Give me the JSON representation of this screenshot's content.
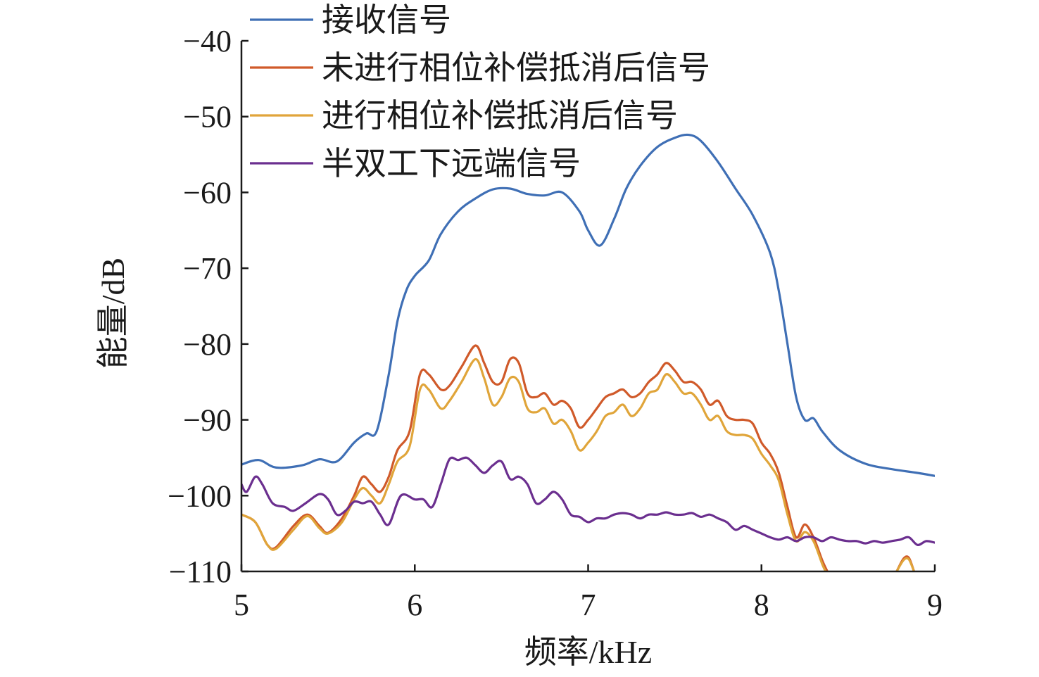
{
  "chart_data": {
    "type": "line",
    "xlabel": "频率/kHz",
    "ylabel": "能量/dB",
    "xlim": [
      5,
      9
    ],
    "ylim": [
      -110,
      -40
    ],
    "xticks": [
      5,
      6,
      7,
      8,
      9
    ],
    "yticks": [
      -40,
      -50,
      -60,
      -70,
      -80,
      -90,
      -100,
      -110
    ],
    "xtick_labels": [
      "5",
      "6",
      "7",
      "8",
      "9"
    ],
    "ytick_labels": [
      "−40",
      "−50",
      "−60",
      "−70",
      "−80",
      "−90",
      "−100",
      "−110"
    ],
    "grid": false,
    "legend_position": "top-left",
    "series": [
      {
        "name": "接收信号",
        "color": "#3f6fb5",
        "points": [
          [
            5.0,
            -95.9
          ],
          [
            5.1,
            -95.3
          ],
          [
            5.2,
            -96.3
          ],
          [
            5.35,
            -96.0
          ],
          [
            5.45,
            -95.2
          ],
          [
            5.55,
            -95.5
          ],
          [
            5.65,
            -93.0
          ],
          [
            5.72,
            -91.8
          ],
          [
            5.78,
            -91.5
          ],
          [
            5.85,
            -84.0
          ],
          [
            5.9,
            -77.0
          ],
          [
            5.95,
            -73.0
          ],
          [
            6.0,
            -71.0
          ],
          [
            6.08,
            -69.0
          ],
          [
            6.15,
            -65.5
          ],
          [
            6.25,
            -62.5
          ],
          [
            6.35,
            -60.8
          ],
          [
            6.45,
            -59.6
          ],
          [
            6.55,
            -59.5
          ],
          [
            6.65,
            -60.2
          ],
          [
            6.75,
            -60.4
          ],
          [
            6.85,
            -60.0
          ],
          [
            6.95,
            -62.5
          ],
          [
            7.0,
            -65.0
          ],
          [
            7.07,
            -67.0
          ],
          [
            7.15,
            -63.5
          ],
          [
            7.22,
            -59.5
          ],
          [
            7.3,
            -56.5
          ],
          [
            7.4,
            -54.0
          ],
          [
            7.5,
            -52.8
          ],
          [
            7.58,
            -52.4
          ],
          [
            7.65,
            -53.2
          ],
          [
            7.75,
            -56.0
          ],
          [
            7.85,
            -59.5
          ],
          [
            7.95,
            -63.0
          ],
          [
            8.05,
            -68.0
          ],
          [
            8.1,
            -73.0
          ],
          [
            8.15,
            -80.0
          ],
          [
            8.2,
            -87.0
          ],
          [
            8.25,
            -90.0
          ],
          [
            8.3,
            -89.8
          ],
          [
            8.35,
            -91.5
          ],
          [
            8.45,
            -94.0
          ],
          [
            8.6,
            -95.8
          ],
          [
            8.75,
            -96.5
          ],
          [
            8.9,
            -97.0
          ],
          [
            9.0,
            -97.4
          ]
        ]
      },
      {
        "name": "未进行相位补偿抵消后信号",
        "color": "#d05a2a",
        "points": [
          [
            5.0,
            -102.5
          ],
          [
            5.08,
            -103.5
          ],
          [
            5.15,
            -106.5
          ],
          [
            5.2,
            -106.8
          ],
          [
            5.3,
            -104.0
          ],
          [
            5.38,
            -102.5
          ],
          [
            5.45,
            -104.0
          ],
          [
            5.5,
            -104.9
          ],
          [
            5.58,
            -103.0
          ],
          [
            5.65,
            -100.0
          ],
          [
            5.7,
            -97.5
          ],
          [
            5.75,
            -98.5
          ],
          [
            5.8,
            -99.5
          ],
          [
            5.85,
            -97.5
          ],
          [
            5.9,
            -94.0
          ],
          [
            5.97,
            -91.5
          ],
          [
            6.03,
            -84.0
          ],
          [
            6.08,
            -84.0
          ],
          [
            6.15,
            -86.0
          ],
          [
            6.2,
            -85.5
          ],
          [
            6.27,
            -83.0
          ],
          [
            6.35,
            -80.2
          ],
          [
            6.4,
            -82.5
          ],
          [
            6.45,
            -85.0
          ],
          [
            6.5,
            -85.0
          ],
          [
            6.55,
            -82.0
          ],
          [
            6.6,
            -82.5
          ],
          [
            6.65,
            -86.5
          ],
          [
            6.7,
            -87.0
          ],
          [
            6.75,
            -86.5
          ],
          [
            6.8,
            -88.0
          ],
          [
            6.85,
            -87.5
          ],
          [
            6.9,
            -88.5
          ],
          [
            6.95,
            -91.0
          ],
          [
            7.0,
            -90.0
          ],
          [
            7.05,
            -88.5
          ],
          [
            7.1,
            -87.0
          ],
          [
            7.15,
            -86.5
          ],
          [
            7.2,
            -86.0
          ],
          [
            7.25,
            -87.0
          ],
          [
            7.3,
            -86.5
          ],
          [
            7.35,
            -85.0
          ],
          [
            7.4,
            -84.0
          ],
          [
            7.45,
            -82.5
          ],
          [
            7.5,
            -83.5
          ],
          [
            7.55,
            -85.0
          ],
          [
            7.6,
            -85.0
          ],
          [
            7.65,
            -86.0
          ],
          [
            7.7,
            -88.0
          ],
          [
            7.75,
            -87.5
          ],
          [
            7.8,
            -89.5
          ],
          [
            7.85,
            -90.0
          ],
          [
            7.9,
            -90.0
          ],
          [
            7.95,
            -90.5
          ],
          [
            8.0,
            -93.0
          ],
          [
            8.05,
            -94.5
          ],
          [
            8.1,
            -97.0
          ],
          [
            8.15,
            -101.5
          ],
          [
            8.2,
            -105.5
          ],
          [
            8.25,
            -103.8
          ],
          [
            8.3,
            -105.5
          ],
          [
            8.35,
            -108.5
          ],
          [
            8.38,
            -110.0
          ]
        ],
        "points_segment_2": [
          [
            8.78,
            -110.0
          ],
          [
            8.82,
            -108.3
          ],
          [
            8.85,
            -108.2
          ],
          [
            8.88,
            -110.0
          ]
        ]
      },
      {
        "name": "进行相位补偿抵消后信号",
        "color": "#e0a53a",
        "points": [
          [
            5.0,
            -102.5
          ],
          [
            5.08,
            -103.5
          ],
          [
            5.15,
            -106.5
          ],
          [
            5.2,
            -107.0
          ],
          [
            5.3,
            -104.5
          ],
          [
            5.38,
            -102.7
          ],
          [
            5.45,
            -104.3
          ],
          [
            5.5,
            -105.0
          ],
          [
            5.58,
            -103.5
          ],
          [
            5.65,
            -100.5
          ],
          [
            5.7,
            -99.0
          ],
          [
            5.75,
            -100.0
          ],
          [
            5.8,
            -101.0
          ],
          [
            5.85,
            -98.5
          ],
          [
            5.9,
            -95.5
          ],
          [
            5.97,
            -93.5
          ],
          [
            6.03,
            -86.0
          ],
          [
            6.08,
            -86.0
          ],
          [
            6.15,
            -88.5
          ],
          [
            6.2,
            -87.5
          ],
          [
            6.27,
            -85.0
          ],
          [
            6.35,
            -82.0
          ],
          [
            6.4,
            -84.5
          ],
          [
            6.45,
            -88.0
          ],
          [
            6.5,
            -87.0
          ],
          [
            6.55,
            -84.5
          ],
          [
            6.6,
            -85.0
          ],
          [
            6.65,
            -88.5
          ],
          [
            6.7,
            -89.0
          ],
          [
            6.75,
            -88.5
          ],
          [
            6.8,
            -90.5
          ],
          [
            6.85,
            -90.0
          ],
          [
            6.9,
            -91.5
          ],
          [
            6.95,
            -94.0
          ],
          [
            7.0,
            -93.0
          ],
          [
            7.05,
            -91.5
          ],
          [
            7.1,
            -89.5
          ],
          [
            7.15,
            -89.0
          ],
          [
            7.2,
            -88.0
          ],
          [
            7.25,
            -89.5
          ],
          [
            7.3,
            -88.5
          ],
          [
            7.35,
            -86.5
          ],
          [
            7.4,
            -86.0
          ],
          [
            7.45,
            -84.0
          ],
          [
            7.5,
            -85.0
          ],
          [
            7.55,
            -86.5
          ],
          [
            7.6,
            -86.5
          ],
          [
            7.65,
            -88.0
          ],
          [
            7.7,
            -90.0
          ],
          [
            7.75,
            -89.5
          ],
          [
            7.8,
            -91.5
          ],
          [
            7.85,
            -92.0
          ],
          [
            7.9,
            -92.0
          ],
          [
            7.95,
            -92.5
          ],
          [
            8.0,
            -94.5
          ],
          [
            8.05,
            -96.0
          ],
          [
            8.1,
            -98.0
          ],
          [
            8.15,
            -102.5
          ],
          [
            8.2,
            -106.0
          ],
          [
            8.25,
            -104.8
          ],
          [
            8.3,
            -106.0
          ],
          [
            8.35,
            -109.0
          ],
          [
            8.37,
            -110.0
          ]
        ],
        "points_segment_2": [
          [
            8.78,
            -110.0
          ],
          [
            8.82,
            -108.5
          ],
          [
            8.85,
            -108.4
          ],
          [
            8.88,
            -110.0
          ]
        ]
      },
      {
        "name": "半双工下远端信号",
        "color": "#6b2f8f",
        "points": [
          [
            5.0,
            -98.5
          ],
          [
            5.03,
            -99.5
          ],
          [
            5.08,
            -97.5
          ],
          [
            5.12,
            -98.5
          ],
          [
            5.18,
            -101.0
          ],
          [
            5.25,
            -101.5
          ],
          [
            5.3,
            -102.0
          ],
          [
            5.37,
            -101.0
          ],
          [
            5.45,
            -99.8
          ],
          [
            5.5,
            -100.5
          ],
          [
            5.55,
            -102.5
          ],
          [
            5.6,
            -102.0
          ],
          [
            5.65,
            -100.8
          ],
          [
            5.7,
            -101.0
          ],
          [
            5.75,
            -100.8
          ],
          [
            5.8,
            -102.5
          ],
          [
            5.85,
            -103.8
          ],
          [
            5.92,
            -100.0
          ],
          [
            6.0,
            -100.5
          ],
          [
            6.05,
            -100.5
          ],
          [
            6.1,
            -101.5
          ],
          [
            6.15,
            -98.5
          ],
          [
            6.2,
            -95.2
          ],
          [
            6.25,
            -95.3
          ],
          [
            6.3,
            -95.0
          ],
          [
            6.35,
            -96.0
          ],
          [
            6.4,
            -97.0
          ],
          [
            6.45,
            -96.0
          ],
          [
            6.5,
            -95.5
          ],
          [
            6.55,
            -97.8
          ],
          [
            6.6,
            -97.5
          ],
          [
            6.65,
            -98.5
          ],
          [
            6.7,
            -101.0
          ],
          [
            6.75,
            -100.5
          ],
          [
            6.8,
            -99.5
          ],
          [
            6.85,
            -100.5
          ],
          [
            6.9,
            -102.5
          ],
          [
            6.95,
            -102.8
          ],
          [
            7.0,
            -103.5
          ],
          [
            7.05,
            -103.0
          ],
          [
            7.1,
            -103.0
          ],
          [
            7.15,
            -102.5
          ],
          [
            7.2,
            -102.3
          ],
          [
            7.25,
            -102.5
          ],
          [
            7.3,
            -103.0
          ],
          [
            7.35,
            -102.5
          ],
          [
            7.4,
            -102.5
          ],
          [
            7.45,
            -102.2
          ],
          [
            7.5,
            -102.5
          ],
          [
            7.55,
            -102.5
          ],
          [
            7.6,
            -102.3
          ],
          [
            7.65,
            -102.8
          ],
          [
            7.7,
            -102.5
          ],
          [
            7.75,
            -103.0
          ],
          [
            7.8,
            -103.5
          ],
          [
            7.85,
            -104.5
          ],
          [
            7.9,
            -104.0
          ],
          [
            7.95,
            -104.5
          ],
          [
            8.0,
            -105.0
          ],
          [
            8.05,
            -105.5
          ],
          [
            8.1,
            -105.8
          ],
          [
            8.15,
            -105.5
          ],
          [
            8.2,
            -106.0
          ],
          [
            8.25,
            -105.5
          ],
          [
            8.3,
            -105.5
          ],
          [
            8.35,
            -106.0
          ],
          [
            8.4,
            -105.5
          ],
          [
            8.45,
            -105.8
          ],
          [
            8.5,
            -106.0
          ],
          [
            8.55,
            -106.0
          ],
          [
            8.6,
            -106.3
          ],
          [
            8.65,
            -106.0
          ],
          [
            8.7,
            -106.2
          ],
          [
            8.75,
            -106.0
          ],
          [
            8.8,
            -105.8
          ],
          [
            8.85,
            -105.5
          ],
          [
            8.9,
            -106.5
          ],
          [
            8.95,
            -106.0
          ],
          [
            9.0,
            -106.2
          ]
        ]
      }
    ]
  }
}
